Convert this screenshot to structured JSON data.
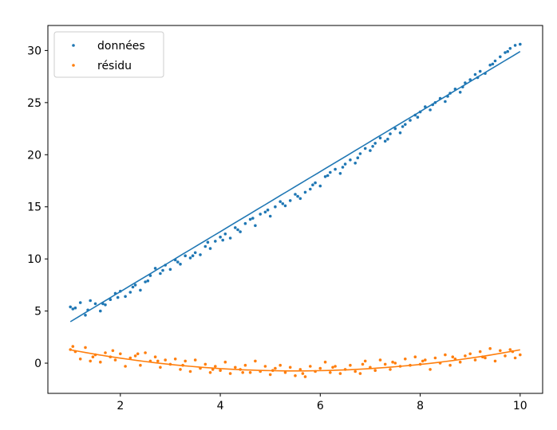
{
  "chart_data": {
    "type": "scatter",
    "title": "",
    "xlabel": "",
    "ylabel": "",
    "xlim": [
      0.55,
      10.45
    ],
    "ylim": [
      -2.9,
      32.4
    ],
    "xticks": [
      2,
      4,
      6,
      8,
      10
    ],
    "yticks": [
      0,
      5,
      10,
      15,
      20,
      25,
      30
    ],
    "grid": false,
    "legend_position": "top-left",
    "series": [
      {
        "name": "données",
        "color": "#1f77b4",
        "marker": "dot",
        "points": [
          [
            1.0,
            5.4
          ],
          [
            1.1,
            5.3
          ],
          [
            1.2,
            5.8
          ],
          [
            1.3,
            4.6
          ],
          [
            1.4,
            6.0
          ],
          [
            1.5,
            5.7
          ],
          [
            1.6,
            5.0
          ],
          [
            1.7,
            5.6
          ],
          [
            1.8,
            6.1
          ],
          [
            1.9,
            6.7
          ],
          [
            2.0,
            6.9
          ],
          [
            2.1,
            6.4
          ],
          [
            2.2,
            6.8
          ],
          [
            2.3,
            7.5
          ],
          [
            2.4,
            7.0
          ],
          [
            2.5,
            7.8
          ],
          [
            2.6,
            8.4
          ],
          [
            2.7,
            9.1
          ],
          [
            2.8,
            8.6
          ],
          [
            2.9,
            9.4
          ],
          [
            3.0,
            9.0
          ],
          [
            3.1,
            9.9
          ],
          [
            3.2,
            9.5
          ],
          [
            3.3,
            10.3
          ],
          [
            3.4,
            10.1
          ],
          [
            3.5,
            10.6
          ],
          [
            3.6,
            10.4
          ],
          [
            3.7,
            11.2
          ],
          [
            3.8,
            11.0
          ],
          [
            3.9,
            11.7
          ],
          [
            4.0,
            12.1
          ],
          [
            4.1,
            12.4
          ],
          [
            4.2,
            12.0
          ],
          [
            4.3,
            13.0
          ],
          [
            4.4,
            12.6
          ],
          [
            4.5,
            13.4
          ],
          [
            4.6,
            13.8
          ],
          [
            4.7,
            13.2
          ],
          [
            4.8,
            14.3
          ],
          [
            4.9,
            14.5
          ],
          [
            5.0,
            14.1
          ],
          [
            5.1,
            15.0
          ],
          [
            5.2,
            15.5
          ],
          [
            5.3,
            15.1
          ],
          [
            5.4,
            15.6
          ],
          [
            5.5,
            16.2
          ],
          [
            5.6,
            15.8
          ],
          [
            5.7,
            16.4
          ],
          [
            5.8,
            16.7
          ],
          [
            5.9,
            17.3
          ],
          [
            6.0,
            17.0
          ],
          [
            6.1,
            17.9
          ],
          [
            6.2,
            18.3
          ],
          [
            6.3,
            18.6
          ],
          [
            6.4,
            18.2
          ],
          [
            6.5,
            19.1
          ],
          [
            6.6,
            19.5
          ],
          [
            6.7,
            19.2
          ],
          [
            6.8,
            20.1
          ],
          [
            6.9,
            20.6
          ],
          [
            7.0,
            20.4
          ],
          [
            7.1,
            21.1
          ],
          [
            7.2,
            21.6
          ],
          [
            7.3,
            21.3
          ],
          [
            7.4,
            22.0
          ],
          [
            7.5,
            22.5
          ],
          [
            7.6,
            22.1
          ],
          [
            7.7,
            22.9
          ],
          [
            7.8,
            23.3
          ],
          [
            7.9,
            23.8
          ],
          [
            8.0,
            24.1
          ],
          [
            8.1,
            24.6
          ],
          [
            8.2,
            24.3
          ],
          [
            8.3,
            25.0
          ],
          [
            8.4,
            25.4
          ],
          [
            8.5,
            25.1
          ],
          [
            8.6,
            25.9
          ],
          [
            8.7,
            26.3
          ],
          [
            8.8,
            26.0
          ],
          [
            8.9,
            26.9
          ],
          [
            9.0,
            27.2
          ],
          [
            9.1,
            27.7
          ],
          [
            9.2,
            28.0
          ],
          [
            9.3,
            27.8
          ],
          [
            9.4,
            28.6
          ],
          [
            9.5,
            29.0
          ],
          [
            9.6,
            29.4
          ],
          [
            9.7,
            29.8
          ],
          [
            9.8,
            30.2
          ],
          [
            9.9,
            30.5
          ],
          [
            10.0,
            30.6
          ],
          [
            1.05,
            5.2
          ],
          [
            1.35,
            5.1
          ],
          [
            1.65,
            5.7
          ],
          [
            1.95,
            6.3
          ],
          [
            2.25,
            7.3
          ],
          [
            2.55,
            7.9
          ],
          [
            2.85,
            8.9
          ],
          [
            3.15,
            9.7
          ],
          [
            3.45,
            10.3
          ],
          [
            3.75,
            11.6
          ],
          [
            4.05,
            11.8
          ],
          [
            4.35,
            12.8
          ],
          [
            4.65,
            13.9
          ],
          [
            4.95,
            14.7
          ],
          [
            5.25,
            15.3
          ],
          [
            5.55,
            16.0
          ],
          [
            5.85,
            17.1
          ],
          [
            6.15,
            18.0
          ],
          [
            6.45,
            18.8
          ],
          [
            6.75,
            19.7
          ],
          [
            7.05,
            20.8
          ],
          [
            7.35,
            21.5
          ],
          [
            7.65,
            22.7
          ],
          [
            7.95,
            23.6
          ],
          [
            8.25,
            24.8
          ],
          [
            8.55,
            25.6
          ],
          [
            8.85,
            26.5
          ],
          [
            9.15,
            27.4
          ],
          [
            9.45,
            28.7
          ],
          [
            9.75,
            29.9
          ]
        ],
        "fit": {
          "type": "linear",
          "slope": 2.88,
          "intercept": 1.1,
          "x_range": [
            1,
            10
          ]
        }
      },
      {
        "name": "résidu",
        "color": "#ff7f0e",
        "marker": "dot",
        "points": [
          [
            1.0,
            1.3
          ],
          [
            1.1,
            1.1
          ],
          [
            1.2,
            0.4
          ],
          [
            1.3,
            1.5
          ],
          [
            1.4,
            0.2
          ],
          [
            1.5,
            0.8
          ],
          [
            1.6,
            0.1
          ],
          [
            1.7,
            1.0
          ],
          [
            1.8,
            0.6
          ],
          [
            1.9,
            0.3
          ],
          [
            2.0,
            0.9
          ],
          [
            2.1,
            -0.3
          ],
          [
            2.2,
            0.5
          ],
          [
            2.3,
            0.7
          ],
          [
            2.4,
            -0.2
          ],
          [
            2.5,
            1.0
          ],
          [
            2.6,
            0.2
          ],
          [
            2.7,
            0.6
          ],
          [
            2.8,
            -0.4
          ],
          [
            2.9,
            0.3
          ],
          [
            3.0,
            -0.1
          ],
          [
            3.1,
            0.4
          ],
          [
            3.2,
            -0.6
          ],
          [
            3.3,
            0.2
          ],
          [
            3.4,
            -0.8
          ],
          [
            3.5,
            0.3
          ],
          [
            3.6,
            -0.5
          ],
          [
            3.7,
            -0.1
          ],
          [
            3.8,
            -0.9
          ],
          [
            3.9,
            -0.3
          ],
          [
            4.0,
            -0.7
          ],
          [
            4.1,
            0.1
          ],
          [
            4.2,
            -1.0
          ],
          [
            4.3,
            -0.4
          ],
          [
            4.4,
            -0.6
          ],
          [
            4.5,
            -0.2
          ],
          [
            4.6,
            -0.9
          ],
          [
            4.7,
            0.2
          ],
          [
            4.8,
            -0.8
          ],
          [
            4.9,
            -0.3
          ],
          [
            5.0,
            -1.1
          ],
          [
            5.1,
            -0.5
          ],
          [
            5.2,
            -0.2
          ],
          [
            5.3,
            -0.9
          ],
          [
            5.4,
            -0.4
          ],
          [
            5.5,
            -1.2
          ],
          [
            5.6,
            -0.6
          ],
          [
            5.7,
            -1.3
          ],
          [
            5.8,
            -0.3
          ],
          [
            5.9,
            -0.8
          ],
          [
            6.0,
            -0.5
          ],
          [
            6.1,
            0.1
          ],
          [
            6.2,
            -0.9
          ],
          [
            6.3,
            -0.3
          ],
          [
            6.4,
            -1.0
          ],
          [
            6.5,
            -0.6
          ],
          [
            6.6,
            -0.2
          ],
          [
            6.7,
            -0.8
          ],
          [
            6.8,
            -1.0
          ],
          [
            6.9,
            0.2
          ],
          [
            7.0,
            -0.4
          ],
          [
            7.1,
            -0.7
          ],
          [
            7.2,
            0.3
          ],
          [
            7.3,
            -0.1
          ],
          [
            7.4,
            -0.6
          ],
          [
            7.5,
            0.0
          ],
          [
            7.6,
            -0.3
          ],
          [
            7.7,
            0.4
          ],
          [
            7.8,
            -0.2
          ],
          [
            7.9,
            0.6
          ],
          [
            8.0,
            -0.1
          ],
          [
            8.1,
            0.3
          ],
          [
            8.2,
            -0.6
          ],
          [
            8.3,
            0.5
          ],
          [
            8.4,
            0.0
          ],
          [
            8.5,
            0.8
          ],
          [
            8.6,
            -0.2
          ],
          [
            8.7,
            0.4
          ],
          [
            8.8,
            0.1
          ],
          [
            8.9,
            0.7
          ],
          [
            9.0,
            0.9
          ],
          [
            9.1,
            0.3
          ],
          [
            9.2,
            1.1
          ],
          [
            9.3,
            0.5
          ],
          [
            9.4,
            1.4
          ],
          [
            9.5,
            0.2
          ],
          [
            9.6,
            1.2
          ],
          [
            9.7,
            0.7
          ],
          [
            9.8,
            1.3
          ],
          [
            9.9,
            0.5
          ],
          [
            10.0,
            0.8
          ],
          [
            1.05,
            1.6
          ],
          [
            1.45,
            0.6
          ],
          [
            1.85,
            1.2
          ],
          [
            2.35,
            0.9
          ],
          [
            2.75,
            0.2
          ],
          [
            3.25,
            -0.2
          ],
          [
            3.85,
            -0.6
          ],
          [
            4.45,
            -0.9
          ],
          [
            5.05,
            -0.7
          ],
          [
            5.65,
            -1.0
          ],
          [
            6.25,
            -0.4
          ],
          [
            6.85,
            -0.1
          ],
          [
            7.45,
            0.1
          ],
          [
            8.05,
            0.2
          ],
          [
            8.65,
            0.6
          ],
          [
            9.25,
            0.6
          ],
          [
            9.85,
            1.1
          ]
        ],
        "fit": {
          "type": "quadratic",
          "coefficients": [
            2.28,
            -1.1,
            0.1
          ],
          "x_range": [
            1,
            10
          ]
        }
      }
    ]
  }
}
